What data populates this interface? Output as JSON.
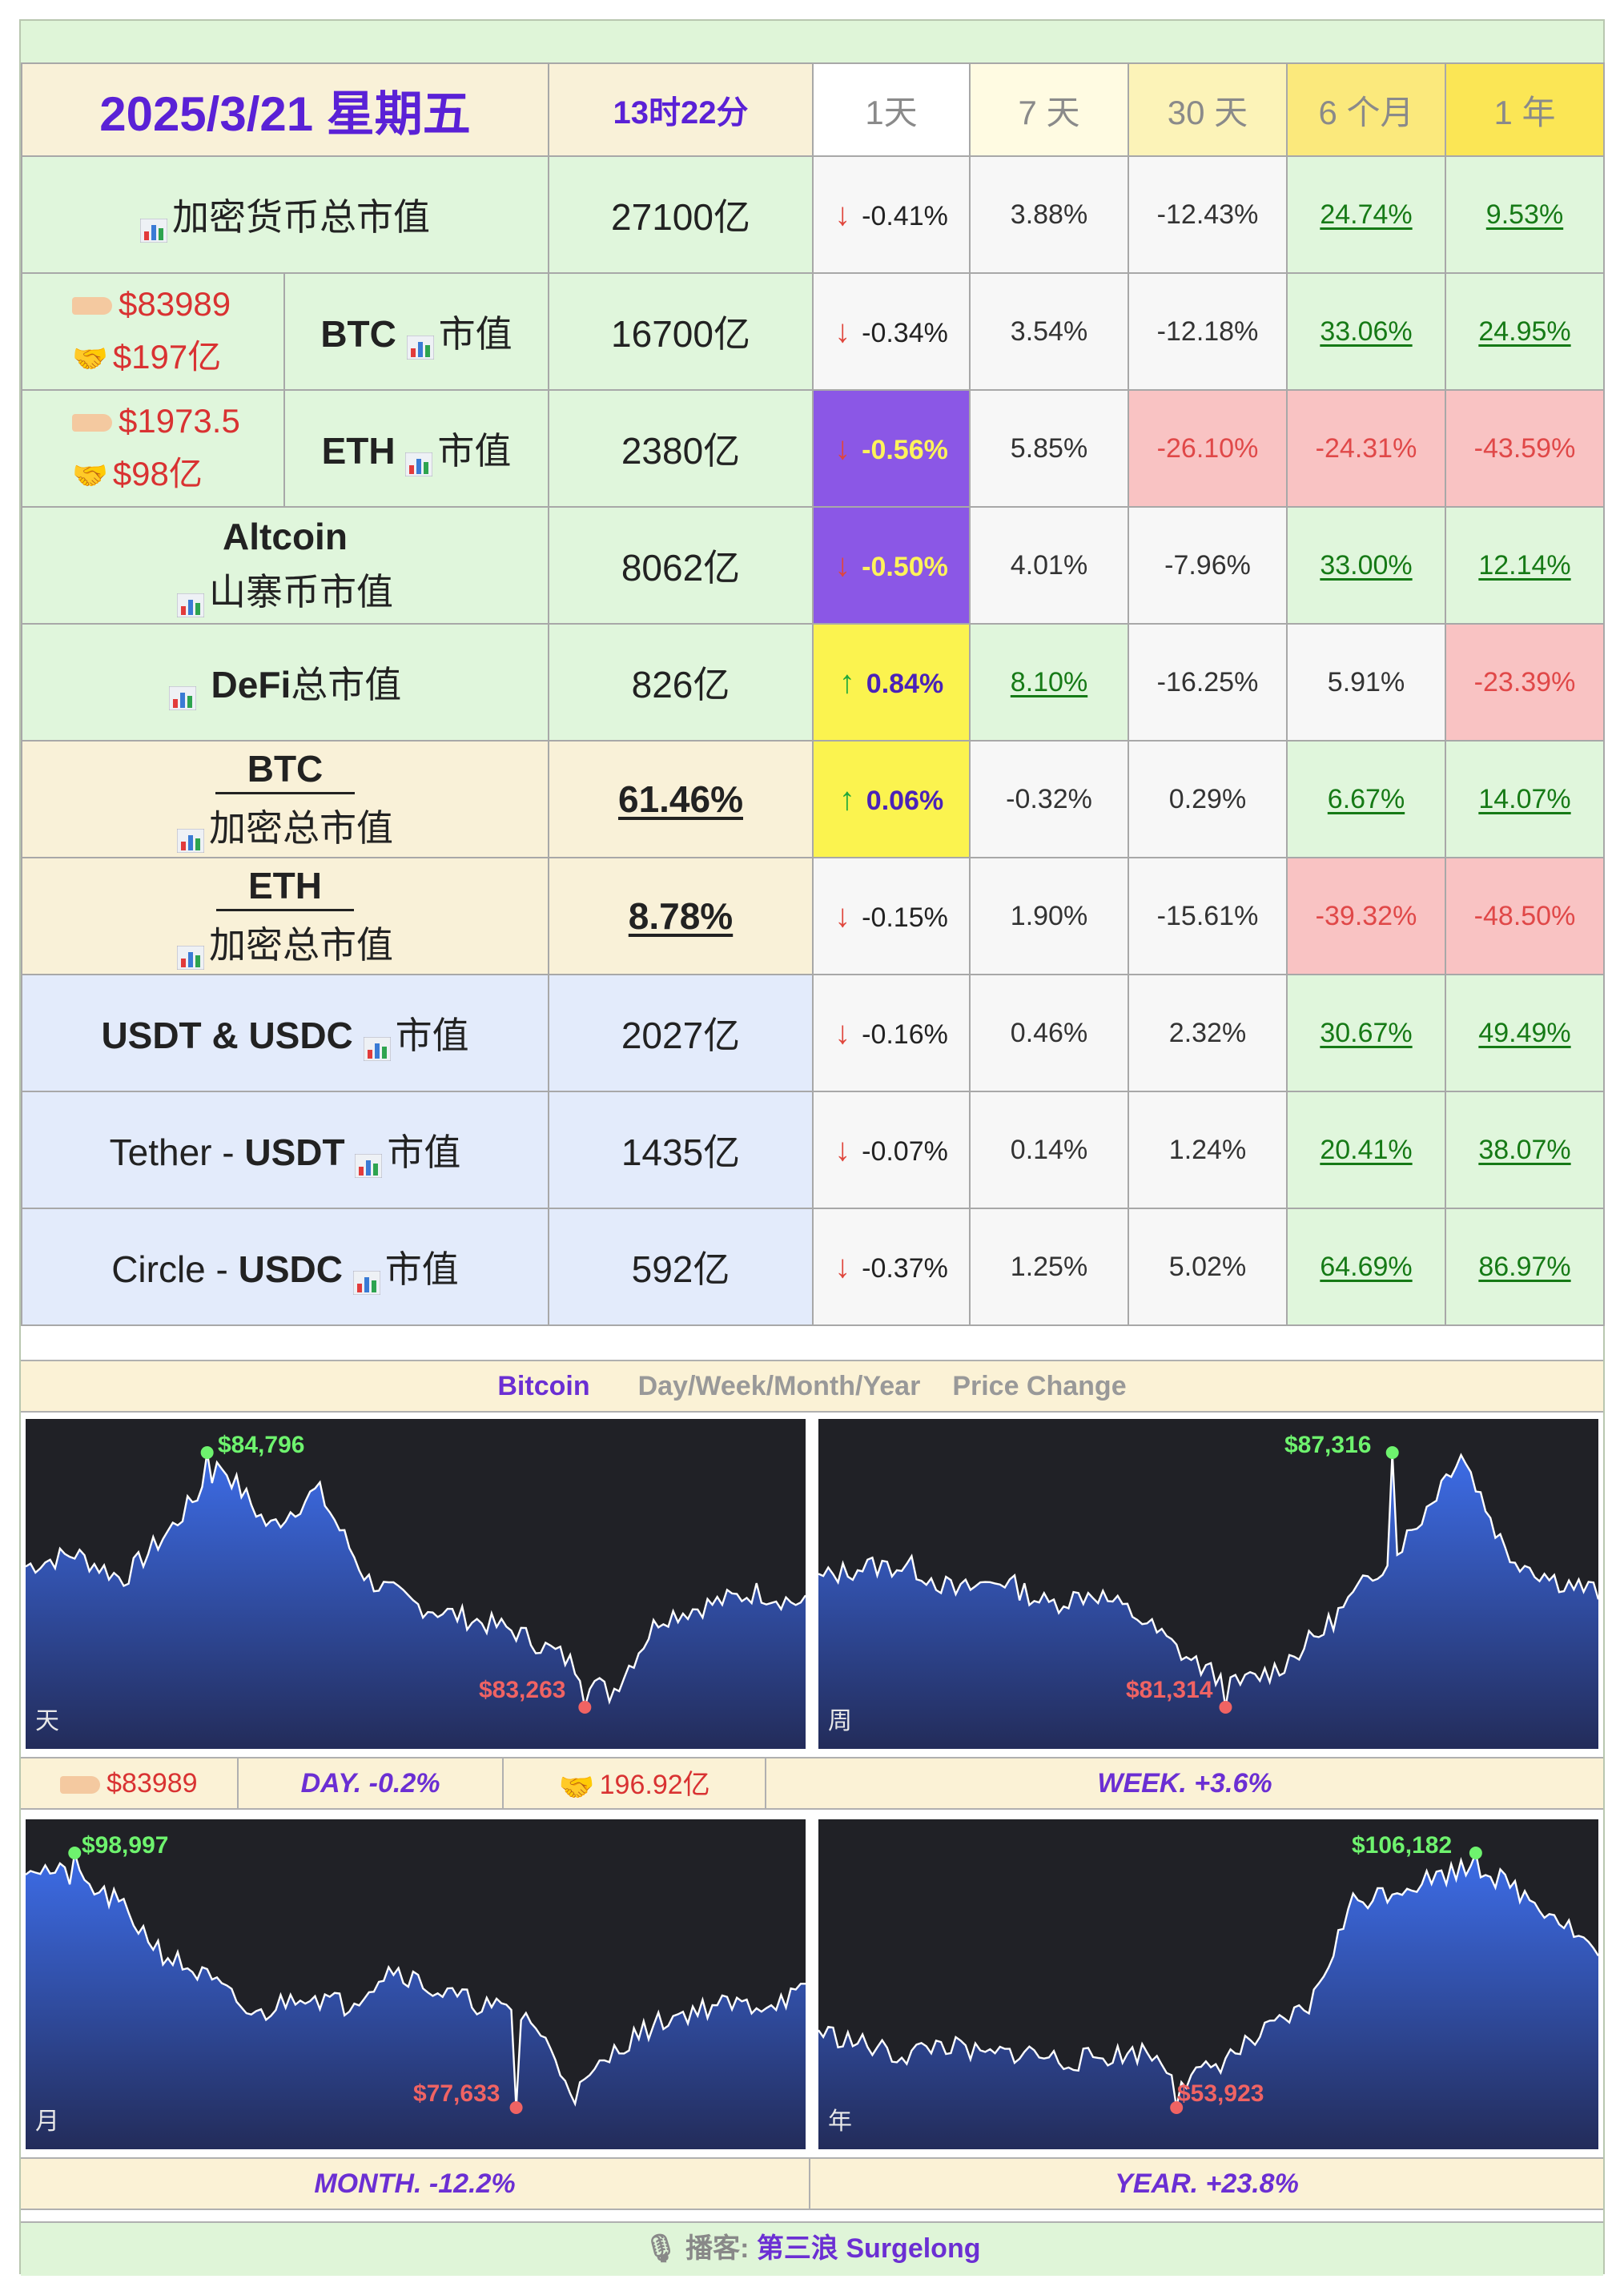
{
  "header": {
    "date": "2025/3/21 星期五",
    "time": "13时22分",
    "periods": [
      "1天",
      "7 天",
      "30 天",
      "6 个月",
      "1 年"
    ]
  },
  "rows": [
    {
      "label": "加密货币总市值",
      "value": "27100亿",
      "c": [
        "-0.41%",
        "3.88%",
        "-12.43%",
        "24.74%",
        "9.53%"
      ],
      "dir": "down"
    },
    {
      "label": "BTC",
      "label2": "市值",
      "price": "$83989",
      "volume": "$197亿",
      "value": "16700亿",
      "c": [
        "-0.34%",
        "3.54%",
        "-12.18%",
        "33.06%",
        "24.95%"
      ],
      "dir": "down"
    },
    {
      "label": "ETH",
      "label2": "市值",
      "price": "$1973.5",
      "volume": "$98亿",
      "value": "2380亿",
      "c": [
        "-0.56%",
        "5.85%",
        "-26.10%",
        "-24.31%",
        "-43.59%"
      ],
      "dir": "down"
    },
    {
      "label": "Altcoin",
      "label2": "山寨币市值",
      "value": "8062亿",
      "c": [
        "-0.50%",
        "4.01%",
        "-7.96%",
        "33.00%",
        "12.14%"
      ],
      "dir": "down"
    },
    {
      "label": "DeFi",
      "label2": "总市值",
      "value": "826亿",
      "c": [
        "0.84%",
        "8.10%",
        "-16.25%",
        "5.91%",
        "-23.39%"
      ],
      "dir": "up"
    },
    {
      "label": "BTC",
      "label2": "加密总市值",
      "value": "61.46%",
      "c": [
        "0.06%",
        "-0.32%",
        "0.29%",
        "6.67%",
        "14.07%"
      ],
      "dir": "up"
    },
    {
      "label": "ETH",
      "label2": "加密总市值",
      "value": "8.78%",
      "c": [
        "-0.15%",
        "1.90%",
        "-15.61%",
        "-39.32%",
        "-48.50%"
      ],
      "dir": "down"
    },
    {
      "label": "USDT & USDC",
      "label2": "市值",
      "value": "2027亿",
      "c": [
        "-0.16%",
        "0.46%",
        "2.32%",
        "30.67%",
        "49.49%"
      ],
      "dir": "down"
    },
    {
      "label": "Tether - ",
      "label_b": "USDT",
      "label2": "市值",
      "value": "1435亿",
      "c": [
        "-0.07%",
        "0.14%",
        "1.24%",
        "20.41%",
        "38.07%"
      ],
      "dir": "down"
    },
    {
      "label": "Circle - ",
      "label_b": "USDC",
      "label2": "市值",
      "value": "592亿",
      "c": [
        "-0.37%",
        "1.25%",
        "5.02%",
        "64.69%",
        "86.97%"
      ],
      "dir": "down"
    }
  ],
  "bitcoin_section": {
    "title_coin": "Bitcoin",
    "title_periods": "Day/Week/Month/Year",
    "title_suffix": "Price Change",
    "price": "$83989",
    "volume": "196.92亿",
    "day": "DAY.   -0.2%",
    "week": "WEEK.   +3.6%",
    "month": "MONTH.   -12.2%",
    "year": "YEAR.   +23.8%"
  },
  "panels": [
    {
      "tag": "天",
      "high": "$84,796",
      "low": "$83,263"
    },
    {
      "tag": "周",
      "high": "$87,316",
      "low": "$81,314"
    },
    {
      "tag": "月",
      "high": "$98,997",
      "low": "$77,633"
    },
    {
      "tag": "年",
      "high": "$106,182",
      "low": "$53,923"
    }
  ],
  "footer": {
    "prefix": "播客:",
    "name": "第三浪 Surgelong"
  },
  "colors": {
    "accent": "#5a21d6",
    "green": "#167a16",
    "red": "#e04848"
  }
}
